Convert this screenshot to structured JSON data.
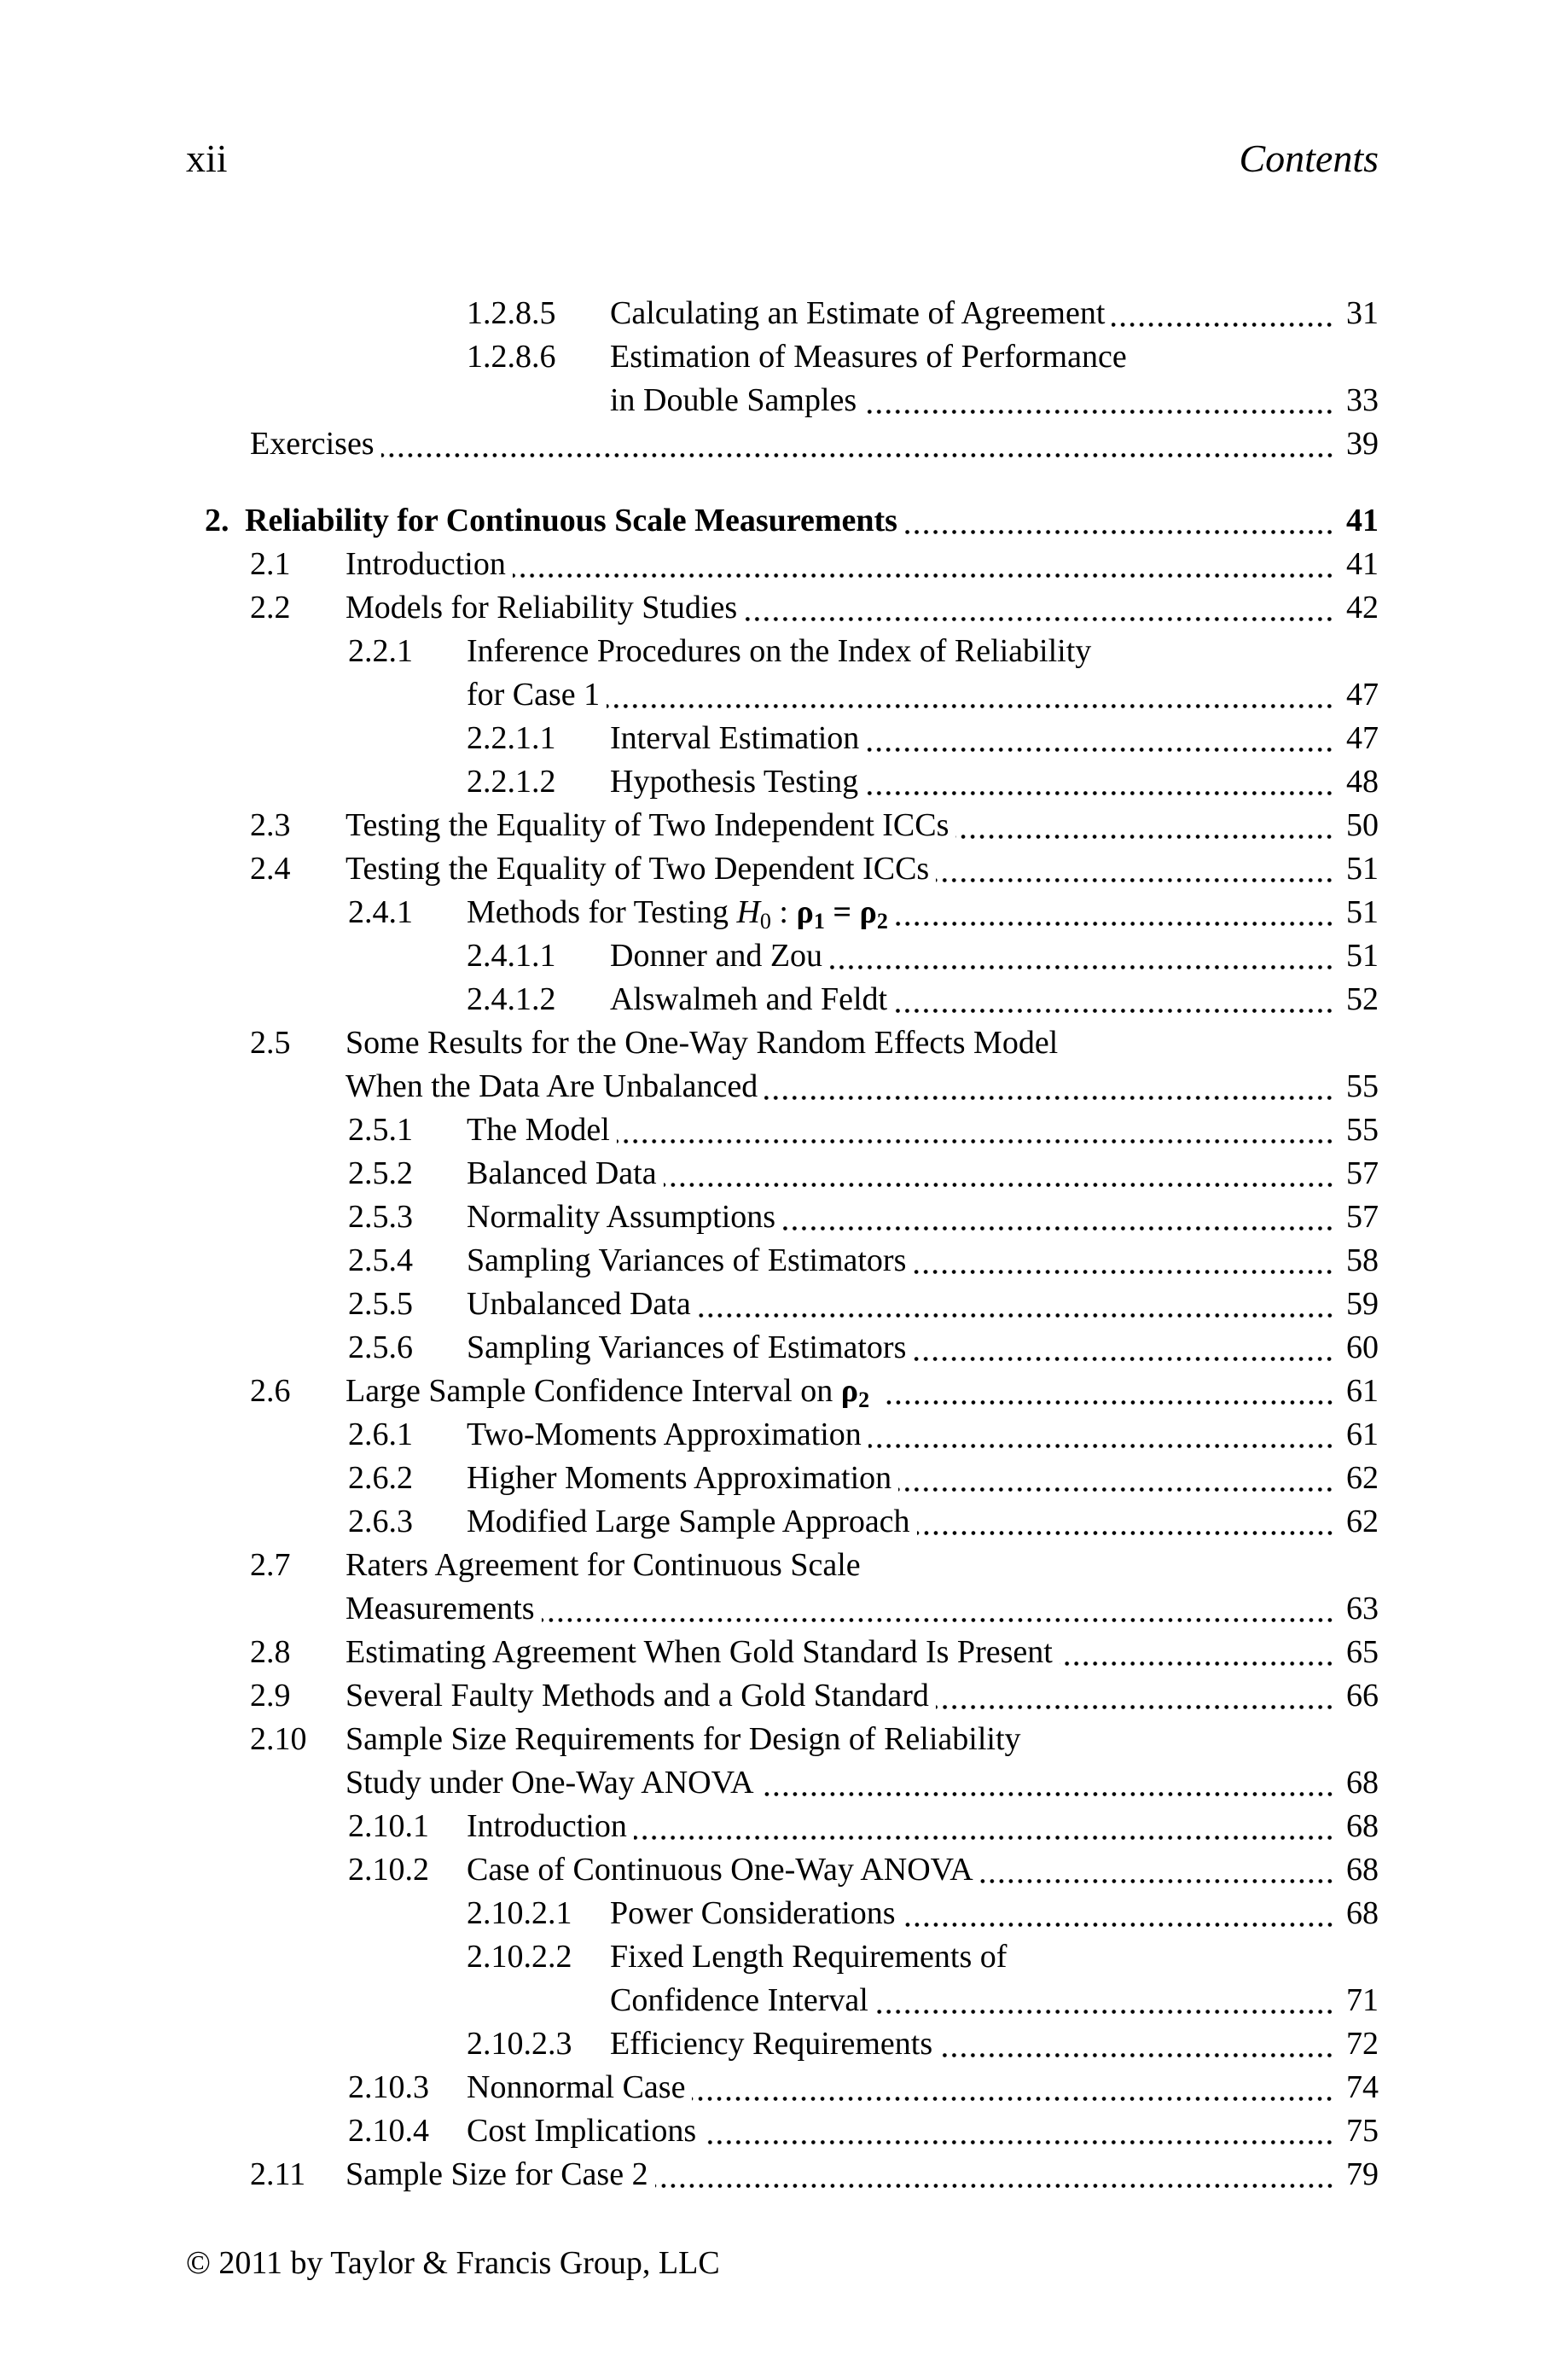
{
  "page_header": {
    "folio": "xii",
    "running_title": "Contents"
  },
  "footer": {
    "copyright": "© 2011 by Taylor & Francis Group, LLC"
  },
  "toc": {
    "entries": [
      {
        "level": "l3",
        "number": "1.2.8.5",
        "page": "31",
        "lines": [
          [
            {
              "t": "Calculating an Estimate of Agreement"
            }
          ]
        ]
      },
      {
        "level": "l3",
        "number": "1.2.8.6",
        "page": "33",
        "lines": [
          [
            {
              "t": "Estimation of Measures of Performance"
            }
          ],
          [
            {
              "t": "in Double Samples"
            }
          ]
        ]
      },
      {
        "level": "plain",
        "number": "",
        "page": "39",
        "lines": [
          [
            {
              "t": "Exercises"
            }
          ]
        ]
      },
      {
        "level": "chapter",
        "number": "2.",
        "bold": true,
        "page": "41",
        "lines": [
          [
            {
              "t": "Reliability for Continuous Scale Measurements"
            }
          ]
        ]
      },
      {
        "level": "l1",
        "number": "2.1",
        "page": "41",
        "lines": [
          [
            {
              "t": "Introduction"
            }
          ]
        ]
      },
      {
        "level": "l1",
        "number": "2.2",
        "page": "42",
        "lines": [
          [
            {
              "t": "Models for Reliability Studies"
            }
          ]
        ]
      },
      {
        "level": "l2",
        "number": "2.2.1",
        "page": "47",
        "lines": [
          [
            {
              "t": "Inference Procedures on the Index of Reliability"
            }
          ],
          [
            {
              "t": "for Case 1"
            }
          ]
        ]
      },
      {
        "level": "l3",
        "number": "2.2.1.1",
        "page": "47",
        "lines": [
          [
            {
              "t": "Interval Estimation"
            }
          ]
        ]
      },
      {
        "level": "l3",
        "number": "2.2.1.2",
        "page": "48",
        "lines": [
          [
            {
              "t": "Hypothesis Testing"
            }
          ]
        ]
      },
      {
        "level": "l1",
        "number": "2.3",
        "page": "50",
        "lines": [
          [
            {
              "t": "Testing the Equality of Two Independent ICCs"
            }
          ]
        ]
      },
      {
        "level": "l1",
        "number": "2.4",
        "page": "51",
        "lines": [
          [
            {
              "t": "Testing the Equality of Two Dependent ICCs"
            }
          ]
        ]
      },
      {
        "level": "l2",
        "number": "2.4.1",
        "page": "51",
        "lines": [
          [
            {
              "t": "Methods for Testing "
            },
            {
              "t": "H",
              "s": "i"
            },
            {
              "t": "0",
              "s": "sub"
            },
            {
              "t": " : "
            },
            {
              "t": "ρ",
              "s": "b"
            },
            {
              "t": "1",
              "s": "bsub"
            },
            {
              "t": " = ",
              "s": "b"
            },
            {
              "t": "ρ",
              "s": "b"
            },
            {
              "t": "2",
              "s": "bsub"
            }
          ]
        ]
      },
      {
        "level": "l3",
        "number": "2.4.1.1",
        "page": "51",
        "lines": [
          [
            {
              "t": "Donner and Zou"
            }
          ]
        ]
      },
      {
        "level": "l3",
        "number": "2.4.1.2",
        "page": "52",
        "lines": [
          [
            {
              "t": "Alswalmeh and Feldt"
            }
          ]
        ]
      },
      {
        "level": "l1",
        "number": "2.5",
        "page": "55",
        "lines": [
          [
            {
              "t": "Some Results for the One-Way Random Effects Model"
            }
          ],
          [
            {
              "t": "When the Data Are Unbalanced"
            }
          ]
        ]
      },
      {
        "level": "l2",
        "number": "2.5.1",
        "page": "55",
        "lines": [
          [
            {
              "t": "The Model"
            }
          ]
        ]
      },
      {
        "level": "l2",
        "number": "2.5.2",
        "page": "57",
        "lines": [
          [
            {
              "t": "Balanced Data"
            }
          ]
        ]
      },
      {
        "level": "l2",
        "number": "2.5.3",
        "page": "57",
        "lines": [
          [
            {
              "t": "Normality Assumptions"
            }
          ]
        ]
      },
      {
        "level": "l2",
        "number": "2.5.4",
        "page": "58",
        "lines": [
          [
            {
              "t": "Sampling Variances of Estimators"
            }
          ]
        ]
      },
      {
        "level": "l2",
        "number": "2.5.5",
        "page": "59",
        "lines": [
          [
            {
              "t": "Unbalanced Data"
            }
          ]
        ]
      },
      {
        "level": "l2",
        "number": "2.5.6",
        "page": "60",
        "lines": [
          [
            {
              "t": "Sampling Variances of Estimators"
            }
          ]
        ]
      },
      {
        "level": "l1",
        "number": "2.6",
        "page": "61",
        "lines": [
          [
            {
              "t": "Large Sample Confidence Interval on "
            },
            {
              "t": "ρ",
              "s": "b"
            },
            {
              "t": "2",
              "s": "bsub"
            },
            {
              "t": " "
            }
          ]
        ]
      },
      {
        "level": "l2",
        "number": "2.6.1",
        "page": "61",
        "lines": [
          [
            {
              "t": "Two-Moments Approximation"
            }
          ]
        ]
      },
      {
        "level": "l2",
        "number": "2.6.2",
        "page": "62",
        "lines": [
          [
            {
              "t": "Higher Moments Approximation"
            }
          ]
        ]
      },
      {
        "level": "l2",
        "number": "2.6.3",
        "page": "62",
        "lines": [
          [
            {
              "t": "Modified Large Sample Approach"
            }
          ]
        ]
      },
      {
        "level": "l1",
        "number": "2.7",
        "page": "63",
        "lines": [
          [
            {
              "t": "Raters Agreement for Continuous Scale"
            }
          ],
          [
            {
              "t": "Measurements"
            }
          ]
        ]
      },
      {
        "level": "l1",
        "number": "2.8",
        "page": "65",
        "lines": [
          [
            {
              "t": "Estimating Agreement When Gold Standard Is Present"
            }
          ]
        ]
      },
      {
        "level": "l1",
        "number": "2.9",
        "page": "66",
        "lines": [
          [
            {
              "t": "Several Faulty Methods and a Gold Standard"
            }
          ]
        ]
      },
      {
        "level": "l1",
        "number": "2.10",
        "page": "68",
        "lines": [
          [
            {
              "t": "Sample Size Requirements for Design of Reliability"
            }
          ],
          [
            {
              "t": "Study under One-Way ANOVA"
            }
          ]
        ]
      },
      {
        "level": "l2",
        "number": "2.10.1",
        "page": "68",
        "lines": [
          [
            {
              "t": "Introduction"
            }
          ]
        ]
      },
      {
        "level": "l2",
        "number": "2.10.2",
        "page": "68",
        "lines": [
          [
            {
              "t": "Case of Continuous One-Way ANOVA"
            }
          ]
        ]
      },
      {
        "level": "l3",
        "number": "2.10.2.1",
        "page": "68",
        "lines": [
          [
            {
              "t": "Power Considerations"
            }
          ]
        ]
      },
      {
        "level": "l3",
        "number": "2.10.2.2",
        "page": "71",
        "lines": [
          [
            {
              "t": "Fixed Length Requirements of"
            }
          ],
          [
            {
              "t": "Confidence Interval"
            }
          ]
        ]
      },
      {
        "level": "l3",
        "number": "2.10.2.3",
        "page": "72",
        "lines": [
          [
            {
              "t": "Efficiency Requirements"
            }
          ]
        ]
      },
      {
        "level": "l2",
        "number": "2.10.3",
        "page": "74",
        "lines": [
          [
            {
              "t": "Nonnormal Case"
            }
          ]
        ]
      },
      {
        "level": "l2",
        "number": "2.10.4",
        "page": "75",
        "lines": [
          [
            {
              "t": "Cost Implications"
            }
          ]
        ]
      },
      {
        "level": "l1",
        "number": "2.11",
        "page": "79",
        "lines": [
          [
            {
              "t": "Sample Size for Case 2"
            }
          ]
        ]
      }
    ]
  }
}
